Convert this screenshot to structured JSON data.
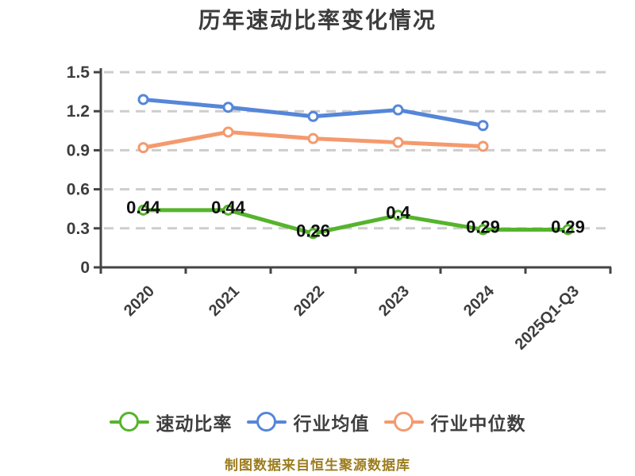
{
  "footer": "制图数据来自恒生聚源数据库",
  "colors": {
    "quick_ratio_green": "#55b42c",
    "industry_avg_blue": "#5586d8",
    "industry_median_orange": "#f49a6e",
    "axis": "#444444",
    "axis_text": "#3d3d3d",
    "grid": "#cdcdcd",
    "data_label": "#0f0f0f",
    "title_text": "#3c3c3c",
    "legend_text": "#3f3f3f",
    "footer_text": "#9b7c1e",
    "background": "#ffffff",
    "marker_fill": "#ffffff"
  },
  "chart_data": {
    "type": "line",
    "title": "历年速动比率变化情况",
    "categories": [
      "2020",
      "2021",
      "2022",
      "2023",
      "2024",
      "2025Q1-Q3"
    ],
    "series": [
      {
        "name": "速动比率",
        "color": "#55b42c",
        "values": [
          0.44,
          0.44,
          0.26,
          0.4,
          0.29,
          0.29
        ],
        "labels": [
          "0.44",
          "0.44",
          "0.26",
          "0.4",
          "0.29",
          "0.29"
        ]
      },
      {
        "name": "行业均值",
        "color": "#5586d8",
        "values": [
          1.29,
          1.23,
          1.16,
          1.21,
          1.09
        ]
      },
      {
        "name": "行业中位数",
        "color": "#f49a6e",
        "values": [
          0.92,
          1.04,
          0.99,
          0.96,
          0.93
        ]
      }
    ],
    "xlabel": "",
    "ylabel": "",
    "ylim": [
      0,
      1.5
    ],
    "yticks": [
      0,
      0.3,
      0.6,
      0.9,
      1.2,
      1.5
    ],
    "grid": "horizontal-dashed",
    "legend_position": "bottom",
    "marker": "circle-white-fill",
    "x_tick_label_rotation": -45
  }
}
